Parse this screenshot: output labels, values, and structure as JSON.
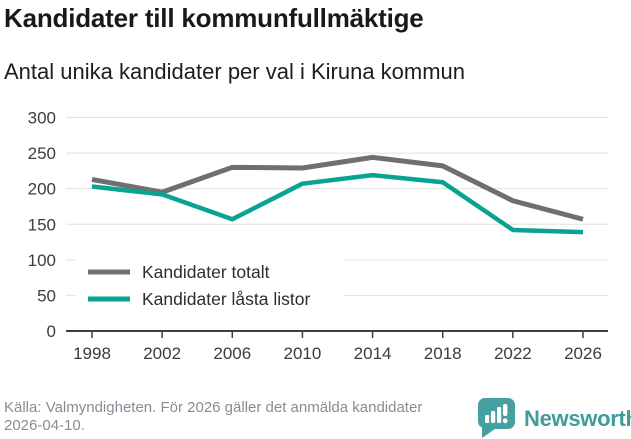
{
  "chart_data": {
    "type": "line",
    "title": "Kandidater till kommunfullmäktige",
    "subtitle": "Antal unika kandidater per val i Kiruna kommun",
    "categories": [
      "1998",
      "2002",
      "2006",
      "2010",
      "2014",
      "2018",
      "2022",
      "2026"
    ],
    "series": [
      {
        "name": "Kandidater totalt",
        "color": "#6f6f6f",
        "values": [
          213,
          195,
          230,
          229,
          244,
          232,
          183,
          157
        ]
      },
      {
        "name": "Kandidater låsta listor",
        "color": "#0aa295",
        "values": [
          203,
          192,
          157,
          207,
          219,
          209,
          142,
          139
        ]
      }
    ],
    "ylim": [
      0,
      300
    ],
    "yticks": [
      0,
      50,
      100,
      150,
      200,
      250,
      300
    ],
    "xlabel": "",
    "ylabel": "",
    "grid": true,
    "legend_position": "inside-bottom-left",
    "grid_color": "#e2e2e2",
    "axis_color": "#3e3e3e",
    "tick_label_color": "#3c3c3c",
    "legend_text_color": "#2e2e2e"
  },
  "footer": {
    "source": "Källa: Valmyndigheten. För 2026 gäller det anmälda kandidater 2026-04-10.",
    "brand": "Newsworthy",
    "brand_color": "#3f9c9c",
    "logo_icon": "bar-chart-speech-bubble-icon",
    "logo_color": "#47a0a0"
  }
}
